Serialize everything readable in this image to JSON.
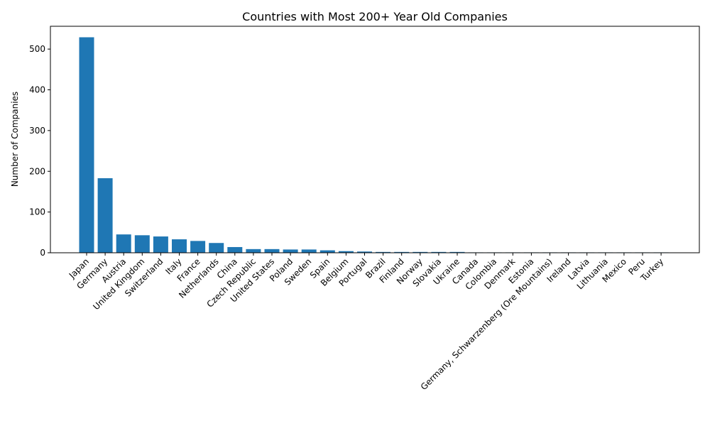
{
  "chart_data": {
    "type": "bar",
    "title": "Countries with Most 200+ Year Old Companies",
    "xlabel": "",
    "ylabel": "Number of Companies",
    "ylim": [
      0,
      556
    ],
    "yticks": [
      0,
      100,
      200,
      300,
      400,
      500
    ],
    "grid": false,
    "bar_color": "#1f77b4",
    "categories": [
      "Japan",
      "Germany",
      "Austria",
      "United Kingdom",
      "Switzerland",
      "Italy",
      "France",
      "Netherlands",
      "China",
      "Czech Republic",
      "United States",
      "Poland",
      "Sweden",
      "Spain",
      "Belgium",
      "Portugal",
      "Brazil",
      "Finland",
      "Norway",
      "Slovakia",
      "Ukraine",
      "Canada",
      "Colombia",
      "Denmark",
      "Estonia",
      "Germany, Schwarzenberg (Ore Mountains)",
      "Ireland",
      "Latvia",
      "Lithuania",
      "Mexico",
      "Peru",
      "Turkey"
    ],
    "values": [
      529,
      183,
      45,
      43,
      40,
      33,
      29,
      24,
      14,
      9,
      9,
      8,
      8,
      6,
      4,
      3,
      2,
      2,
      2,
      2,
      2,
      1,
      1,
      1,
      1,
      1,
      1,
      1,
      1,
      1,
      1,
      1
    ]
  }
}
